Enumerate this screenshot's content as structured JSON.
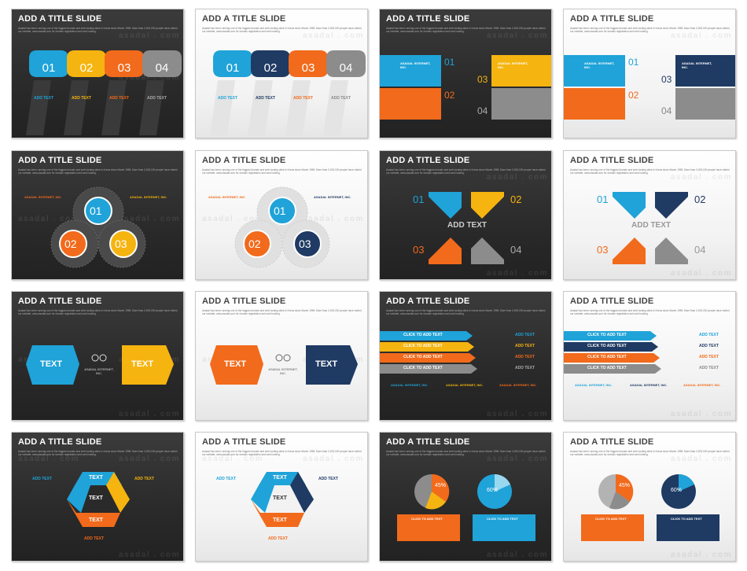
{
  "slide_title": "ADD A TITLE SLIDE",
  "subtitle": "Asadal has been running one of the biggest domain and web hosting sites in Korea since March 1998. More than 3,000,000 people have visited our website, www.asadal.com for domain registration and web hosting.",
  "watermark": "asadal.com",
  "watermark_spaced": "asadal . com",
  "labels": {
    "n01": "01",
    "n02": "02",
    "n03": "03",
    "n04": "04",
    "add_text": "ADD TEXT",
    "add_text_lower": "Add Text",
    "text": "TEXT",
    "click_to_add": "CLICK TO ADD TEXT",
    "click_add_lc": "Click to add text",
    "company": "ASADAL INTERNET, INC.",
    "body": "started its business in Seoul Korea in February 1998 with the fundamental goal of providing better internet services to the world.",
    "bullet": "• ADD TEXT",
    "pct45": "45%",
    "pct60": "60%"
  },
  "colors": {
    "blue": "#1fa3d8",
    "yellow": "#f5b40f",
    "orange": "#f26a1b",
    "gray": "#8c8c8c",
    "navy": "#1f3a63",
    "dark_bg": "#2d2d2d"
  }
}
